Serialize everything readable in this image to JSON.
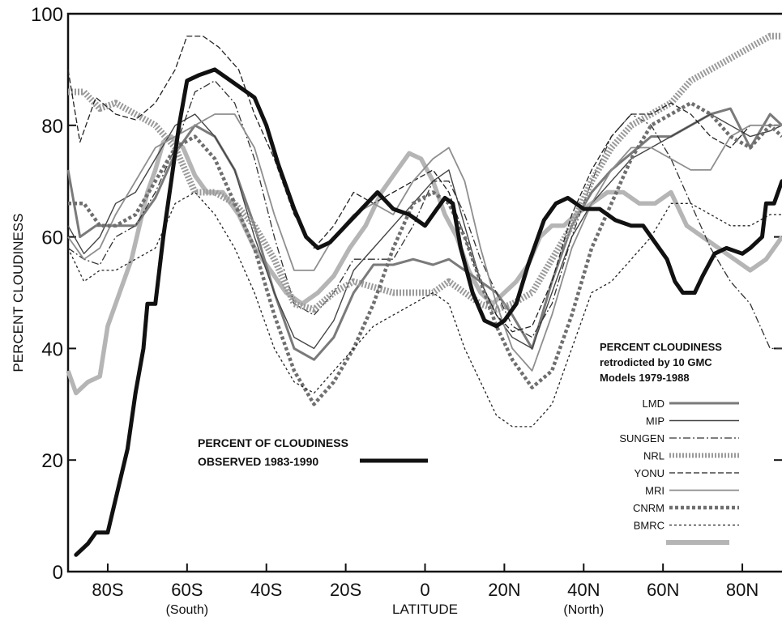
{
  "chart_data": {
    "type": "line",
    "xlabel": "LATITUDE",
    "ylabel": "PERCENT CLOUDINESS",
    "xlim": [
      -90,
      90
    ],
    "ylim": [
      0,
      100
    ],
    "x_ticks": [
      {
        "value": -80,
        "label": "80S"
      },
      {
        "value": -60,
        "label": "60S"
      },
      {
        "value": -40,
        "label": "40S"
      },
      {
        "value": -20,
        "label": "20S"
      },
      {
        "value": 0,
        "label": "0"
      },
      {
        "value": 20,
        "label": "20N"
      },
      {
        "value": 40,
        "label": "40N"
      },
      {
        "value": 60,
        "label": "60N"
      },
      {
        "value": 80,
        "label": "80N"
      }
    ],
    "y_ticks": [
      0,
      20,
      40,
      60,
      80,
      100
    ],
    "hemisphere_labels": {
      "south": "(South)",
      "north": "(North)"
    },
    "observed_annotation": [
      "PERCENT OF CLOUDINESS",
      "OBSERVED 1983-1990"
    ],
    "legend_title": [
      "PERCENT CLOUDINESS",
      "retrodicted by 10 GMC",
      "Models 1979-1988"
    ],
    "series": [
      {
        "name": "PERCENT OF CLOUDINESS OBSERVED 1983-1990",
        "color": "#111111",
        "style": "observed",
        "x": [
          -88,
          -85,
          -83,
          -80,
          -78,
          -75,
          -73,
          -71,
          -70,
          -68,
          -66,
          -64,
          -62,
          -60,
          -57,
          -53,
          -49,
          -43,
          -40,
          -37,
          -33,
          -30,
          -27,
          -24,
          -20,
          -16,
          -12,
          -8,
          -4,
          0,
          3,
          5,
          7,
          9,
          12,
          15,
          18,
          20,
          23,
          26,
          30,
          33,
          36,
          40,
          44,
          48,
          52,
          55,
          58,
          61,
          63,
          65,
          68,
          70,
          73,
          76,
          80,
          82,
          85,
          86,
          88,
          90
        ],
        "y": [
          3,
          5,
          7,
          7,
          13,
          22,
          32,
          40,
          48,
          48,
          60,
          70,
          80,
          88,
          89,
          90,
          88,
          85,
          80,
          73,
          65,
          60,
          58,
          59,
          62,
          65,
          68,
          65,
          64,
          62,
          65,
          67,
          66,
          58,
          50,
          45,
          44,
          45,
          48,
          55,
          63,
          66,
          67,
          65,
          65,
          63,
          62,
          62,
          59,
          56,
          52,
          50,
          50,
          53,
          57,
          58,
          57,
          58,
          60,
          66,
          66,
          70
        ]
      },
      {
        "name": "LMD",
        "color": "#7a7a7a",
        "style": "lmd",
        "x": [
          -90,
          -87,
          -83,
          -78,
          -73,
          -68,
          -63,
          -58,
          -53,
          -48,
          -43,
          -38,
          -33,
          -28,
          -23,
          -18,
          -13,
          -8,
          -3,
          2,
          6,
          10,
          14,
          18,
          22,
          27,
          32,
          37,
          42,
          47,
          52,
          57,
          62,
          67,
          72,
          77,
          82,
          87,
          90
        ],
        "y": [
          72,
          60,
          62,
          62,
          62,
          67,
          75,
          80,
          78,
          72,
          62,
          50,
          40,
          38,
          42,
          50,
          55,
          55,
          56,
          55,
          56,
          54,
          52,
          50,
          46,
          40,
          52,
          62,
          68,
          72,
          75,
          78,
          78,
          80,
          82,
          83,
          76,
          82,
          80
        ]
      },
      {
        "name": "MIP",
        "color": "#444444",
        "style": "mip",
        "x": [
          -90,
          -86,
          -82,
          -78,
          -73,
          -68,
          -63,
          -58,
          -53,
          -48,
          -43,
          -38,
          -33,
          -28,
          -23,
          -18,
          -13,
          -8,
          -3,
          2,
          6,
          10,
          14,
          18,
          22,
          27,
          32,
          37,
          42,
          47,
          52,
          57,
          62,
          67,
          72,
          77,
          82,
          87,
          90
        ],
        "y": [
          62,
          57,
          60,
          66,
          68,
          74,
          80,
          82,
          78,
          72,
          60,
          50,
          42,
          40,
          45,
          54,
          58,
          62,
          66,
          70,
          72,
          62,
          52,
          46,
          42,
          40,
          50,
          60,
          66,
          70,
          74,
          76,
          78,
          80,
          82,
          80,
          78,
          79,
          80
        ]
      },
      {
        "name": "SUNGEN",
        "color": "#333333",
        "style": "sungen",
        "x": [
          -90,
          -86,
          -82,
          -78,
          -73,
          -68,
          -63,
          -58,
          -53,
          -48,
          -43,
          -38,
          -33,
          -28,
          -23,
          -18,
          -13,
          -8,
          -3,
          2,
          6,
          10,
          14,
          18,
          22,
          27,
          32,
          37,
          42,
          47,
          52,
          57,
          62,
          67,
          72,
          77,
          82,
          87,
          90
        ],
        "y": [
          58,
          56,
          55,
          60,
          62,
          68,
          76,
          86,
          88,
          84,
          74,
          60,
          48,
          46,
          50,
          56,
          56,
          56,
          62,
          70,
          70,
          64,
          56,
          50,
          44,
          42,
          48,
          60,
          70,
          78,
          82,
          80,
          74,
          66,
          58,
          52,
          48,
          40,
          40
        ]
      },
      {
        "name": "NRL",
        "color": "#9a9a9a",
        "style": "nrl",
        "x": [
          -90,
          -86,
          -82,
          -78,
          -73,
          -68,
          -63,
          -58,
          -53,
          -48,
          -43,
          -38,
          -33,
          -28,
          -23,
          -18,
          -13,
          -8,
          -3,
          2,
          6,
          10,
          14,
          18,
          22,
          27,
          32,
          37,
          42,
          47,
          52,
          57,
          62,
          67,
          72,
          77,
          82,
          87,
          90
        ],
        "y": [
          86,
          86,
          83,
          84,
          82,
          80,
          76,
          68,
          68,
          66,
          62,
          56,
          48,
          47,
          50,
          52,
          51,
          50,
          50,
          50,
          52,
          50,
          48,
          47,
          48,
          50,
          56,
          62,
          70,
          76,
          80,
          82,
          84,
          88,
          90,
          92,
          94,
          96,
          96
        ]
      },
      {
        "name": "YONU",
        "color": "#222222",
        "style": "yonu",
        "x": [
          -90,
          -87,
          -83,
          -78,
          -73,
          -68,
          -63,
          -60,
          -56,
          -52,
          -47,
          -43,
          -38,
          -33,
          -28,
          -23,
          -18,
          -13,
          -8,
          -3,
          2,
          6,
          10,
          14,
          18,
          22,
          27,
          32,
          37,
          42,
          47,
          52,
          57,
          62,
          67,
          72,
          77,
          82,
          87,
          90
        ],
        "y": [
          90,
          77,
          85,
          82,
          81,
          84,
          90,
          96,
          96,
          94,
          90,
          82,
          74,
          64,
          58,
          62,
          68,
          66,
          68,
          70,
          72,
          68,
          60,
          52,
          46,
          43,
          44,
          52,
          64,
          72,
          78,
          82,
          82,
          84,
          82,
          78,
          76,
          80,
          80,
          80
        ]
      },
      {
        "name": "MRI",
        "color": "#8e8e8e",
        "style": "mri",
        "x": [
          -90,
          -86,
          -82,
          -78,
          -73,
          -68,
          -63,
          -58,
          -53,
          -48,
          -43,
          -38,
          -33,
          -28,
          -23,
          -18,
          -13,
          -8,
          -3,
          2,
          6,
          10,
          14,
          18,
          22,
          27,
          32,
          37,
          42,
          47,
          52,
          57,
          62,
          67,
          72,
          77,
          82,
          87,
          90
        ],
        "y": [
          60,
          56,
          58,
          64,
          70,
          76,
          78,
          80,
          82,
          82,
          76,
          64,
          54,
          54,
          60,
          64,
          66,
          64,
          70,
          74,
          76,
          70,
          58,
          48,
          40,
          36,
          46,
          58,
          66,
          72,
          76,
          76,
          74,
          72,
          72,
          78,
          80,
          80,
          80
        ]
      },
      {
        "name": "CNRM",
        "color": "#6f6f6f",
        "style": "cnrm",
        "x": [
          -90,
          -86,
          -82,
          -78,
          -73,
          -68,
          -63,
          -58,
          -53,
          -48,
          -43,
          -38,
          -33,
          -28,
          -23,
          -18,
          -13,
          -8,
          -3,
          2,
          6,
          10,
          14,
          18,
          22,
          27,
          32,
          37,
          42,
          47,
          52,
          57,
          62,
          67,
          72,
          77,
          82,
          87,
          90
        ],
        "y": [
          66,
          66,
          62,
          62,
          64,
          70,
          76,
          78,
          74,
          66,
          58,
          46,
          36,
          30,
          34,
          40,
          48,
          58,
          66,
          68,
          66,
          60,
          52,
          44,
          38,
          33,
          36,
          46,
          58,
          66,
          74,
          80,
          82,
          84,
          82,
          78,
          76,
          80,
          78
        ]
      },
      {
        "name": "BMRC",
        "color": "#222222",
        "style": "bmrc",
        "x": [
          -90,
          -86,
          -82,
          -78,
          -73,
          -68,
          -63,
          -58,
          -53,
          -48,
          -43,
          -38,
          -33,
          -28,
          -23,
          -18,
          -13,
          -8,
          -3,
          2,
          6,
          10,
          14,
          18,
          22,
          27,
          32,
          37,
          42,
          47,
          52,
          57,
          62,
          67,
          72,
          77,
          82,
          87,
          90
        ],
        "y": [
          58,
          52,
          54,
          54,
          56,
          58,
          66,
          68,
          64,
          58,
          50,
          40,
          34,
          32,
          36,
          40,
          44,
          46,
          48,
          50,
          48,
          40,
          34,
          28,
          26,
          26,
          30,
          40,
          50,
          52,
          56,
          60,
          66,
          66,
          64,
          62,
          62,
          64,
          64
        ]
      },
      {
        "name": "",
        "color": "#b5b5b5",
        "style": "unlabeled",
        "x": [
          -90,
          -88,
          -85,
          -82,
          -80,
          -77,
          -74,
          -72,
          -70,
          -68,
          -66,
          -64,
          -61,
          -58,
          -55,
          -51,
          -47,
          -43,
          -39,
          -35,
          -31,
          -27,
          -23,
          -19,
          -15,
          -11,
          -7,
          -4,
          -1,
          2,
          5,
          8,
          11,
          14,
          17,
          20,
          23,
          26,
          29,
          32,
          35,
          38,
          42,
          46,
          50,
          54,
          58,
          62,
          66,
          70,
          74,
          78,
          82,
          86,
          88,
          90
        ],
        "y": [
          36,
          32,
          34,
          35,
          44,
          50,
          56,
          62,
          68,
          72,
          77,
          78,
          76,
          71,
          68,
          68,
          64,
          58,
          54,
          50,
          48,
          50,
          53,
          58,
          62,
          68,
          72,
          75,
          74,
          70,
          64,
          60,
          54,
          50,
          48,
          50,
          52,
          55,
          60,
          62,
          62,
          64,
          66,
          68,
          68,
          66,
          66,
          68,
          62,
          60,
          58,
          56,
          54,
          56,
          58,
          60
        ]
      }
    ]
  }
}
